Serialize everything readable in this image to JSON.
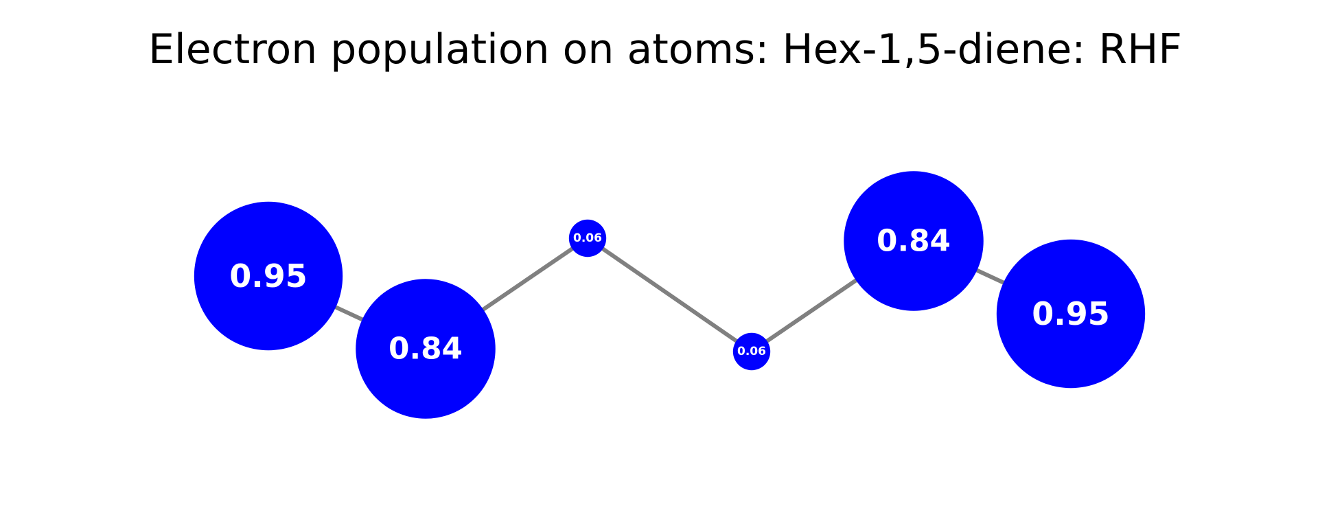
{
  "title": "Electron population on atoms: Hex-1,5-diene: RHF",
  "colors": {
    "atom_fill": "#0000ff",
    "bond_stroke": "#808080",
    "label_text": "#ffffff",
    "title_text": "#000000"
  },
  "atoms": [
    {
      "id": "C1",
      "population": 0.95,
      "label": "0.95"
    },
    {
      "id": "C2",
      "population": 0.84,
      "label": "0.84"
    },
    {
      "id": "C3",
      "population": 0.06,
      "label": "0.06"
    },
    {
      "id": "C4",
      "population": 0.06,
      "label": "0.06"
    },
    {
      "id": "C5",
      "population": 0.84,
      "label": "0.84"
    },
    {
      "id": "C6",
      "population": 0.95,
      "label": "0.95"
    }
  ],
  "bonds": [
    [
      "C1",
      "C2"
    ],
    [
      "C2",
      "C3"
    ],
    [
      "C3",
      "C4"
    ],
    [
      "C4",
      "C5"
    ],
    [
      "C5",
      "C6"
    ]
  ]
}
